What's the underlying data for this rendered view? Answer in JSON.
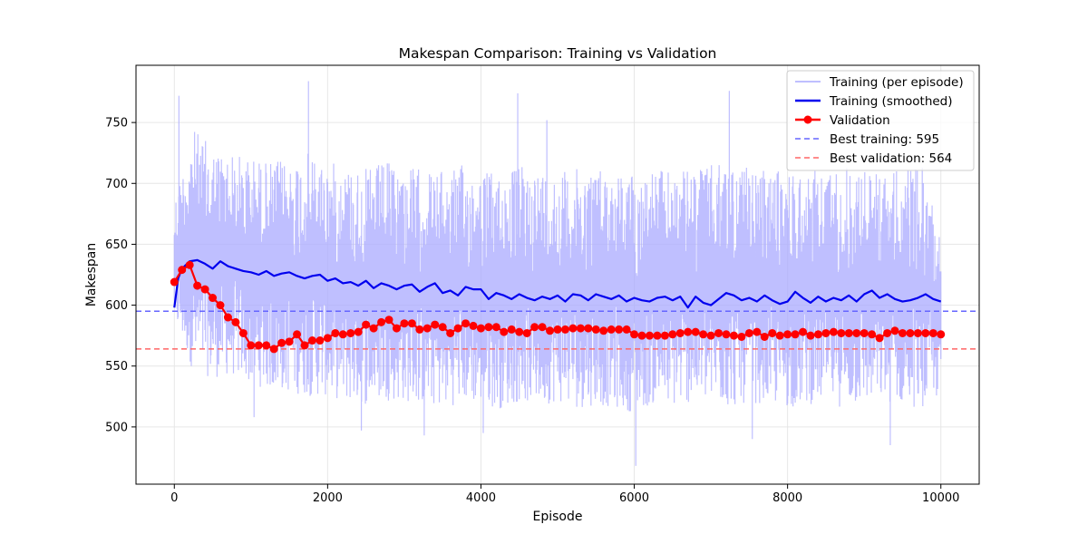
{
  "chart_data": {
    "type": "line",
    "title": "Makespan Comparison: Training vs Validation",
    "xlabel": "Episode",
    "ylabel": "Makespan",
    "xlim": [
      -500,
      10500
    ],
    "ylim": [
      453,
      797
    ],
    "xticks": [
      0,
      2000,
      4000,
      6000,
      8000,
      10000
    ],
    "yticks": [
      500,
      550,
      600,
      650,
      700,
      750
    ],
    "grid": true,
    "legend_position": "top-right",
    "colors": {
      "raw": "#aaaaff",
      "smoothed": "#0000ee",
      "validation": "#ff0000",
      "best_training": "#6666ff",
      "best_validation": "#ff6666"
    },
    "series": [
      {
        "name": "Training (per episode)",
        "style": "raw-band",
        "x": [
          0,
          250,
          500,
          750,
          1000,
          1250,
          1500,
          1750,
          2000,
          2250,
          2500,
          2750,
          3000,
          3250,
          3500,
          3750,
          4000,
          4250,
          4500,
          4750,
          5000,
          5250,
          5500,
          5750,
          6000,
          6250,
          6500,
          6750,
          7000,
          7250,
          7500,
          7750,
          8000,
          8250,
          8500,
          8750,
          9000,
          9250,
          9500,
          9750,
          10000
        ],
        "upper": [
          688,
          745,
          730,
          725,
          722,
          718,
          720,
          725,
          718,
          715,
          712,
          718,
          715,
          712,
          710,
          715,
          712,
          708,
          715,
          712,
          710,
          712,
          715,
          710,
          708,
          712,
          710,
          712,
          715,
          718,
          712,
          710,
          712,
          710,
          712,
          715,
          712,
          710,
          712,
          715,
          665
        ],
        "lower": [
          585,
          545,
          540,
          542,
          535,
          530,
          528,
          525,
          525,
          520,
          518,
          522,
          520,
          518,
          515,
          520,
          518,
          515,
          520,
          518,
          520,
          515,
          518,
          515,
          512,
          518,
          515,
          520,
          518,
          515,
          520,
          518,
          515,
          518,
          520,
          515,
          518,
          520,
          518,
          515,
          525
        ],
        "spikes": [
          [
            60,
            772
          ],
          [
            1750,
            784
          ],
          [
            4480,
            774
          ],
          [
            7240,
            776
          ],
          [
            4860,
            752
          ],
          [
            6020,
            468
          ],
          [
            3260,
            493
          ],
          [
            4030,
            495
          ],
          [
            7540,
            490
          ],
          [
            9340,
            485
          ],
          [
            2440,
            497
          ],
          [
            1040,
            508
          ]
        ]
      },
      {
        "name": "Training (smoothed)",
        "x": [
          0,
          50,
          100,
          200,
          300,
          400,
          500,
          600,
          700,
          800,
          900,
          1000,
          1100,
          1200,
          1300,
          1400,
          1500,
          1600,
          1700,
          1800,
          1900,
          2000,
          2100,
          2200,
          2300,
          2400,
          2500,
          2600,
          2700,
          2800,
          2900,
          3000,
          3100,
          3200,
          3300,
          3400,
          3500,
          3600,
          3700,
          3800,
          3900,
          4000,
          4100,
          4200,
          4300,
          4400,
          4500,
          4600,
          4700,
          4800,
          4900,
          5000,
          5100,
          5200,
          5300,
          5400,
          5500,
          5600,
          5700,
          5800,
          5900,
          6000,
          6100,
          6200,
          6300,
          6400,
          6500,
          6600,
          6700,
          6800,
          6900,
          7000,
          7100,
          7200,
          7300,
          7400,
          7500,
          7600,
          7700,
          7800,
          7900,
          8000,
          8100,
          8200,
          8300,
          8400,
          8500,
          8600,
          8700,
          8800,
          8900,
          9000,
          9100,
          9200,
          9300,
          9400,
          9500,
          9600,
          9700,
          9800,
          9900,
          10000
        ],
        "values": [
          598,
          622,
          630,
          636,
          637,
          634,
          630,
          636,
          632,
          630,
          628,
          627,
          625,
          628,
          624,
          626,
          627,
          624,
          622,
          624,
          625,
          620,
          622,
          618,
          619,
          616,
          620,
          614,
          618,
          616,
          613,
          616,
          617,
          611,
          615,
          618,
          610,
          612,
          608,
          615,
          613,
          613,
          605,
          610,
          608,
          605,
          609,
          606,
          604,
          607,
          605,
          608,
          603,
          609,
          608,
          604,
          609,
          607,
          605,
          608,
          603,
          606,
          604,
          603,
          606,
          607,
          604,
          607,
          598,
          607,
          602,
          600,
          605,
          610,
          608,
          604,
          606,
          603,
          608,
          604,
          601,
          603,
          611,
          606,
          602,
          607,
          603,
          606,
          604,
          608,
          603,
          609,
          612,
          606,
          609,
          605,
          603,
          604,
          606,
          609,
          605,
          603
        ]
      },
      {
        "name": "Validation",
        "x": [
          0,
          100,
          200,
          300,
          400,
          500,
          600,
          700,
          800,
          900,
          1000,
          1100,
          1200,
          1300,
          1400,
          1500,
          1600,
          1700,
          1800,
          1900,
          2000,
          2100,
          2200,
          2300,
          2400,
          2500,
          2600,
          2700,
          2800,
          2900,
          3000,
          3100,
          3200,
          3300,
          3400,
          3500,
          3600,
          3700,
          3800,
          3900,
          4000,
          4100,
          4200,
          4300,
          4400,
          4500,
          4600,
          4700,
          4800,
          4900,
          5000,
          5100,
          5200,
          5300,
          5400,
          5500,
          5600,
          5700,
          5800,
          5900,
          6000,
          6100,
          6200,
          6300,
          6400,
          6500,
          6600,
          6700,
          6800,
          6900,
          7000,
          7100,
          7200,
          7300,
          7400,
          7500,
          7600,
          7700,
          7800,
          7900,
          8000,
          8100,
          8200,
          8300,
          8400,
          8500,
          8600,
          8700,
          8800,
          8900,
          9000,
          9100,
          9200,
          9300,
          9400,
          9500,
          9600,
          9700,
          9800,
          9900,
          10000
        ],
        "values": [
          619,
          629,
          633,
          616,
          613,
          606,
          600,
          590,
          586,
          577,
          567,
          567,
          567,
          564,
          569,
          570,
          576,
          567,
          571,
          571,
          573,
          577,
          576,
          577,
          578,
          584,
          581,
          586,
          588,
          581,
          585,
          585,
          580,
          581,
          584,
          582,
          577,
          581,
          585,
          583,
          581,
          582,
          582,
          578,
          580,
          578,
          577,
          582,
          582,
          579,
          580,
          580,
          581,
          581,
          581,
          580,
          579,
          580,
          580,
          580,
          576,
          575,
          575,
          575,
          575,
          576,
          577,
          578,
          578,
          576,
          575,
          577,
          576,
          575,
          574,
          577,
          578,
          574,
          577,
          575,
          576,
          576,
          578,
          575,
          576,
          577,
          578,
          577,
          577,
          577,
          577,
          576,
          573,
          577,
          579,
          577,
          577,
          577,
          577,
          577,
          576
        ]
      }
    ],
    "reference_lines": [
      {
        "name": "Best training: 595",
        "y": 595
      },
      {
        "name": "Best validation: 564",
        "y": 564
      }
    ]
  }
}
